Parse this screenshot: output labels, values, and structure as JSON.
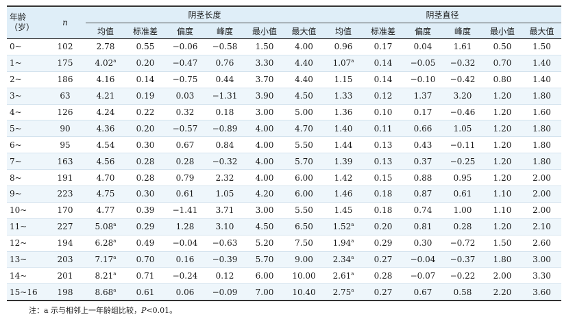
{
  "table": {
    "headers": {
      "age_line1": "年龄",
      "age_line2": "（岁）",
      "n": "n",
      "group_length": "阴茎长度",
      "group_diameter": "阴茎直径",
      "stats": [
        "均值",
        "标准差",
        "偏度",
        "峰度",
        "最小值",
        "最大值"
      ]
    },
    "rows": [
      {
        "age": "0~",
        "n": "102",
        "length": {
          "mean": "2.78",
          "mark": "",
          "sd": "0.55",
          "skew": "−0.06",
          "kurt": "−0.58",
          "min": "1.50",
          "max": "4.00"
        },
        "diameter": {
          "mean": "0.96",
          "mark": "",
          "sd": "0.17",
          "skew": "0.04",
          "kurt": "1.61",
          "min": "0.50",
          "max": "1.50"
        }
      },
      {
        "age": "1~",
        "n": "175",
        "length": {
          "mean": "4.02",
          "mark": "a",
          "sd": "0.20",
          "skew": "−0.47",
          "kurt": "0.76",
          "min": "3.30",
          "max": "4.40"
        },
        "diameter": {
          "mean": "1.07",
          "mark": "a",
          "sd": "0.14",
          "skew": "−0.05",
          "kurt": "−0.32",
          "min": "0.70",
          "max": "1.40"
        }
      },
      {
        "age": "2~",
        "n": "186",
        "length": {
          "mean": "4.16",
          "mark": "",
          "sd": "0.14",
          "skew": "−0.75",
          "kurt": "0.44",
          "min": "3.70",
          "max": "4.40"
        },
        "diameter": {
          "mean": "1.15",
          "mark": "",
          "sd": "0.14",
          "skew": "−0.10",
          "kurt": "−0.42",
          "min": "0.80",
          "max": "1.40"
        }
      },
      {
        "age": "3~",
        "n": "63",
        "length": {
          "mean": "4.21",
          "mark": "",
          "sd": "0.19",
          "skew": "0.03",
          "kurt": "−1.31",
          "min": "3.90",
          "max": "4.50"
        },
        "diameter": {
          "mean": "1.33",
          "mark": "",
          "sd": "0.12",
          "skew": "1.37",
          "kurt": "3.20",
          "min": "1.20",
          "max": "1.80"
        }
      },
      {
        "age": "4~",
        "n": "126",
        "length": {
          "mean": "4.24",
          "mark": "",
          "sd": "0.22",
          "skew": "0.32",
          "kurt": "0.18",
          "min": "3.00",
          "max": "5.00"
        },
        "diameter": {
          "mean": "1.36",
          "mark": "",
          "sd": "0.10",
          "skew": "0.17",
          "kurt": "−0.46",
          "min": "1.20",
          "max": "1.60"
        }
      },
      {
        "age": "5~",
        "n": "90",
        "length": {
          "mean": "4.36",
          "mark": "",
          "sd": "0.20",
          "skew": "−0.57",
          "kurt": "−0.89",
          "min": "4.00",
          "max": "4.70"
        },
        "diameter": {
          "mean": "1.40",
          "mark": "",
          "sd": "0.11",
          "skew": "0.66",
          "kurt": "1.05",
          "min": "1.20",
          "max": "1.80"
        }
      },
      {
        "age": "6~",
        "n": "95",
        "length": {
          "mean": "4.54",
          "mark": "",
          "sd": "0.30",
          "skew": "0.67",
          "kurt": "0.84",
          "min": "4.00",
          "max": "5.50"
        },
        "diameter": {
          "mean": "1.44",
          "mark": "",
          "sd": "0.13",
          "skew": "0.43",
          "kurt": "−0.11",
          "min": "1.20",
          "max": "1.80"
        }
      },
      {
        "age": "7~",
        "n": "163",
        "length": {
          "mean": "4.56",
          "mark": "",
          "sd": "0.28",
          "skew": "0.28",
          "kurt": "−0.32",
          "min": "4.00",
          "max": "5.70"
        },
        "diameter": {
          "mean": "1.39",
          "mark": "",
          "sd": "0.13",
          "skew": "0.37",
          "kurt": "−0.25",
          "min": "1.20",
          "max": "1.80"
        }
      },
      {
        "age": "8~",
        "n": "191",
        "length": {
          "mean": "4.70",
          "mark": "",
          "sd": "0.28",
          "skew": "0.79",
          "kurt": "2.32",
          "min": "4.00",
          "max": "6.00"
        },
        "diameter": {
          "mean": "1.42",
          "mark": "",
          "sd": "0.15",
          "skew": "0.88",
          "kurt": "0.95",
          "min": "1.20",
          "max": "2.00"
        }
      },
      {
        "age": "9~",
        "n": "223",
        "length": {
          "mean": "4.75",
          "mark": "",
          "sd": "0.30",
          "skew": "0.61",
          "kurt": "1.05",
          "min": "4.20",
          "max": "6.00"
        },
        "diameter": {
          "mean": "1.46",
          "mark": "",
          "sd": "0.18",
          "skew": "0.87",
          "kurt": "0.61",
          "min": "1.10",
          "max": "2.00"
        }
      },
      {
        "age": "10~",
        "n": "170",
        "length": {
          "mean": "4.77",
          "mark": "",
          "sd": "0.39",
          "skew": "−1.41",
          "kurt": "3.71",
          "min": "3.00",
          "max": "5.50"
        },
        "diameter": {
          "mean": "1.45",
          "mark": "",
          "sd": "0.18",
          "skew": "0.74",
          "kurt": "1.00",
          "min": "1.10",
          "max": "2.00"
        }
      },
      {
        "age": "11~",
        "n": "227",
        "length": {
          "mean": "5.08",
          "mark": "a",
          "sd": "0.29",
          "skew": "1.28",
          "kurt": "3.10",
          "min": "4.50",
          "max": "6.50"
        },
        "diameter": {
          "mean": "1.52",
          "mark": "a",
          "sd": "0.20",
          "skew": "0.81",
          "kurt": "0.28",
          "min": "1.20",
          "max": "2.10"
        }
      },
      {
        "age": "12~",
        "n": "194",
        "length": {
          "mean": "6.28",
          "mark": "a",
          "sd": "0.49",
          "skew": "−0.04",
          "kurt": "−0.63",
          "min": "5.20",
          "max": "7.50"
        },
        "diameter": {
          "mean": "1.94",
          "mark": "a",
          "sd": "0.29",
          "skew": "0.30",
          "kurt": "−0.72",
          "min": "1.50",
          "max": "2.60"
        }
      },
      {
        "age": "13~",
        "n": "203",
        "length": {
          "mean": "7.17",
          "mark": "a",
          "sd": "0.70",
          "skew": "0.16",
          "kurt": "−0.39",
          "min": "5.70",
          "max": "9.00"
        },
        "diameter": {
          "mean": "2.34",
          "mark": "a",
          "sd": "0.27",
          "skew": "−0.04",
          "kurt": "−0.37",
          "min": "1.80",
          "max": "3.00"
        }
      },
      {
        "age": "14~",
        "n": "201",
        "length": {
          "mean": "8.21",
          "mark": "a",
          "sd": "0.71",
          "skew": "−0.24",
          "kurt": "0.12",
          "min": "6.00",
          "max": "10.00"
        },
        "diameter": {
          "mean": "2.61",
          "mark": "a",
          "sd": "0.28",
          "skew": "−0.07",
          "kurt": "−0.22",
          "min": "2.00",
          "max": "3.30"
        }
      },
      {
        "age": "15~16",
        "n": "198",
        "length": {
          "mean": "8.68",
          "mark": "a",
          "sd": "0.61",
          "skew": "0.06",
          "kurt": "−0.09",
          "min": "7.00",
          "max": "10.40"
        },
        "diameter": {
          "mean": "2.75",
          "mark": "a",
          "sd": "0.27",
          "skew": "0.67",
          "kurt": "0.58",
          "min": "2.20",
          "max": "3.60"
        }
      }
    ]
  },
  "note": {
    "prefix": "注：a 示与相邻上一年龄组比较，",
    "p_symbol": "P",
    "suffix": "<0.01。"
  },
  "colors": {
    "header_bg": "#dfeef8",
    "alt_row_bg": "#eef6fb",
    "rule": "#333333"
  }
}
